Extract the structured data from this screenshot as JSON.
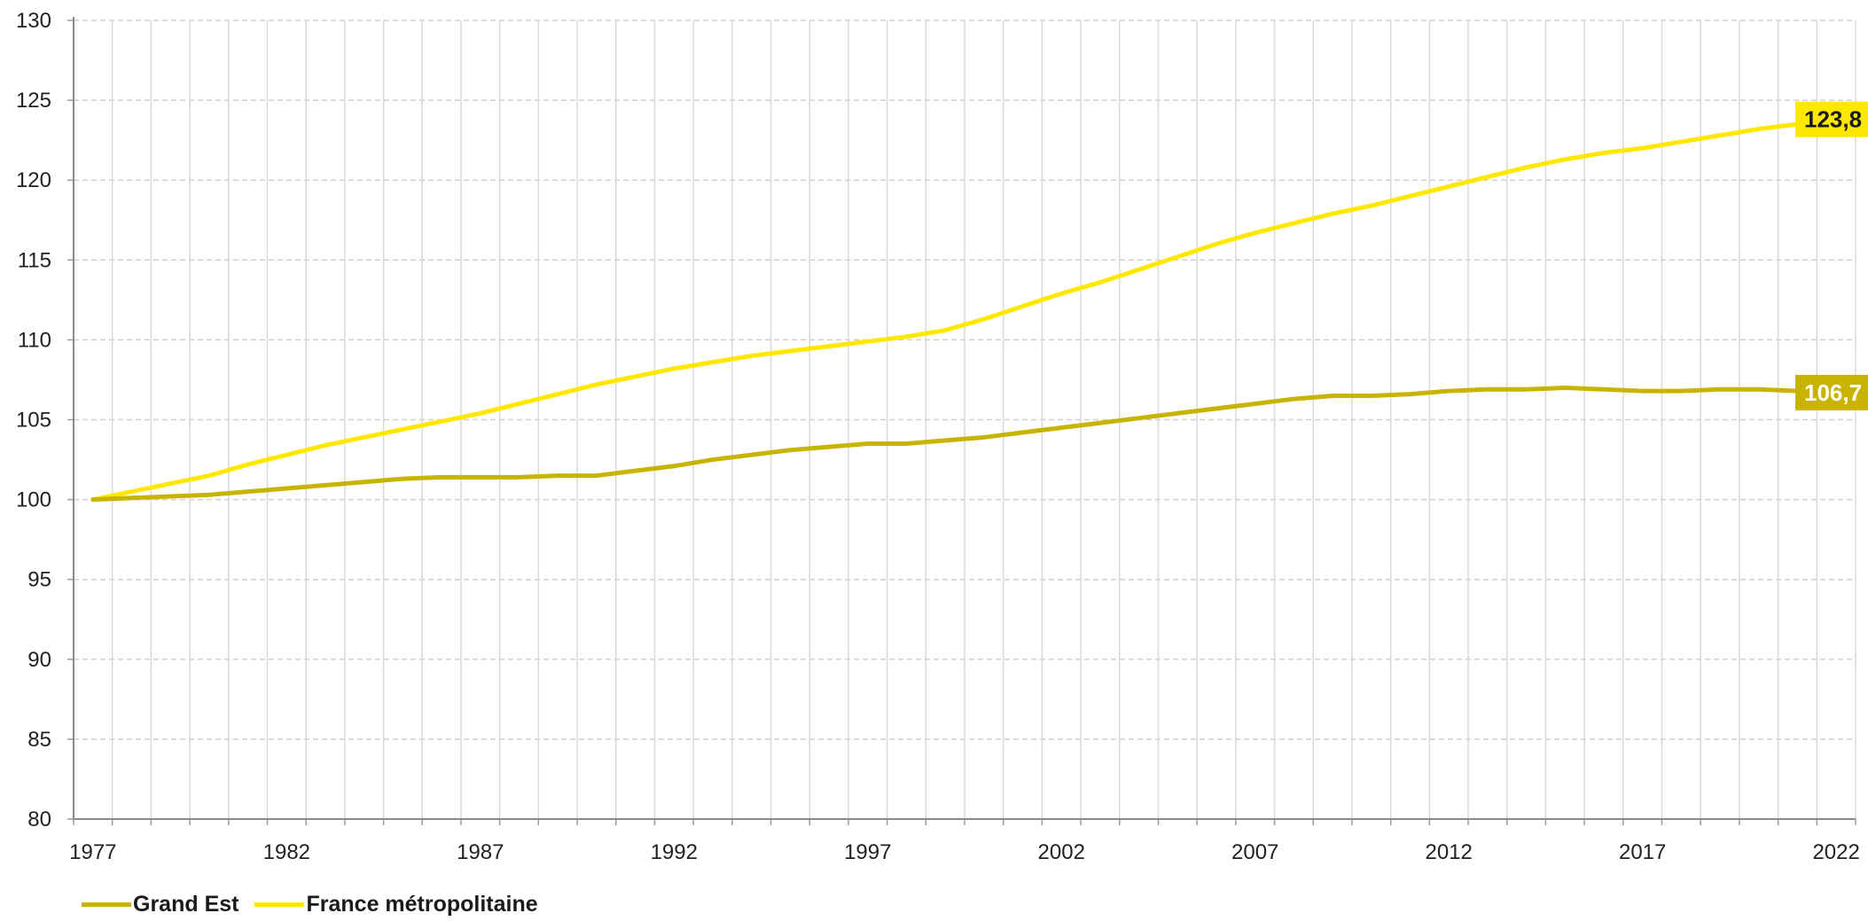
{
  "chart_data": {
    "type": "line",
    "title": "",
    "xlabel": "",
    "ylabel": "",
    "xlim": [
      1977,
      2023
    ],
    "ylim": [
      80,
      130
    ],
    "y_ticks": [
      80,
      85,
      90,
      95,
      100,
      105,
      110,
      115,
      120,
      125,
      130
    ],
    "x_ticks": [
      1977,
      1982,
      1987,
      1992,
      1997,
      2002,
      2007,
      2012,
      2017,
      2022
    ],
    "grid": "on",
    "legend_position": "bottom-left",
    "x": [
      1977,
      1978,
      1979,
      1980,
      1981,
      1982,
      1983,
      1984,
      1985,
      1986,
      1987,
      1988,
      1989,
      1990,
      1991,
      1992,
      1993,
      1994,
      1995,
      1996,
      1997,
      1998,
      1999,
      2000,
      2001,
      2002,
      2003,
      2004,
      2005,
      2006,
      2007,
      2008,
      2009,
      2010,
      2011,
      2012,
      2013,
      2014,
      2015,
      2016,
      2017,
      2018,
      2019,
      2020,
      2021,
      2022
    ],
    "series": [
      {
        "name": "Grand Est",
        "color": "#c8b400",
        "end_label": "106,7",
        "values": [
          100.0,
          100.1,
          100.2,
          100.3,
          100.5,
          100.7,
          100.9,
          101.1,
          101.3,
          101.4,
          101.4,
          101.4,
          101.5,
          101.5,
          101.8,
          102.1,
          102.5,
          102.8,
          103.1,
          103.3,
          103.5,
          103.5,
          103.7,
          103.9,
          104.2,
          104.5,
          104.8,
          105.1,
          105.4,
          105.7,
          106.0,
          106.3,
          106.5,
          106.5,
          106.6,
          106.8,
          106.9,
          106.9,
          107.0,
          106.9,
          106.8,
          106.8,
          106.9,
          106.9,
          106.8,
          106.7
        ]
      },
      {
        "name": "France métropolitaine",
        "color": "#ffe800",
        "end_label": "123,8",
        "values": [
          100.0,
          100.5,
          101.0,
          101.5,
          102.2,
          102.8,
          103.4,
          103.9,
          104.4,
          104.9,
          105.4,
          106.0,
          106.6,
          107.2,
          107.7,
          108.2,
          108.6,
          109.0,
          109.3,
          109.6,
          109.9,
          110.2,
          110.6,
          111.3,
          112.1,
          112.9,
          113.6,
          114.4,
          115.2,
          116.0,
          116.7,
          117.3,
          117.9,
          118.4,
          119.0,
          119.6,
          120.2,
          120.8,
          121.3,
          121.7,
          122.0,
          122.4,
          122.8,
          123.2,
          123.5,
          123.8
        ]
      }
    ]
  }
}
